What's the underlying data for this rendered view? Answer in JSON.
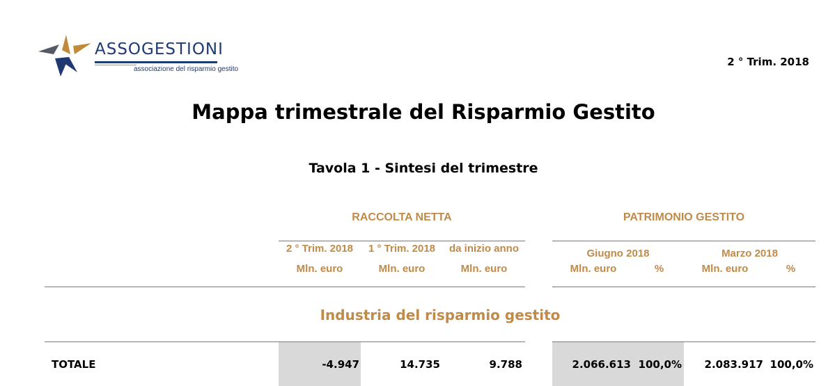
{
  "logo": {
    "name": "ASSOGESTIONI",
    "tagline": "associazione del risparmio gestito"
  },
  "period": "2 ° Trim. 2018",
  "title": "Mappa trimestrale del Risparmio Gestito",
  "table_title": "Tavola 1  - Sintesi del trimestre",
  "groups": {
    "raccolta": {
      "label": "RACCOLTA NETTA",
      "columns": [
        {
          "period": "2 ° Trim. 2018",
          "unit": "Mln. euro"
        },
        {
          "period": "1 ° Trim. 2018",
          "unit": "Mln. euro"
        },
        {
          "period": "da inizio anno",
          "unit": "Mln. euro"
        }
      ]
    },
    "patrimonio": {
      "label": "PATRIMONIO GESTITO",
      "periods": [
        "Giugno 2018",
        "Marzo 2018"
      ],
      "columns": [
        {
          "unit": "Mln. euro"
        },
        {
          "unit": "%"
        },
        {
          "unit": "Mln. euro"
        },
        {
          "unit": "%"
        }
      ]
    }
  },
  "section": "Industria del risparmio gestito",
  "rows": [
    {
      "label": "TOTALE",
      "raccolta": [
        "-4.947",
        "14.735",
        "9.788"
      ],
      "patrimonio": [
        "2.066.613",
        "100,0%",
        "2.083.917",
        "100,0%"
      ]
    }
  ],
  "colors": {
    "accent": "#c08a48",
    "brand": "#1f3a73",
    "shade": "#d9d9d9"
  }
}
